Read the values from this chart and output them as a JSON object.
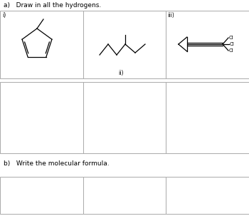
{
  "title_a": "a)   Draw in all the hydrogens.",
  "title_b": "b)   Write the molecular formula.",
  "label_i": "i)",
  "label_ii": "ii)",
  "label_iii": "iii)",
  "bg_color": "#ffffff",
  "line_color": "#000000",
  "box_line_color": "#aaaaaa"
}
